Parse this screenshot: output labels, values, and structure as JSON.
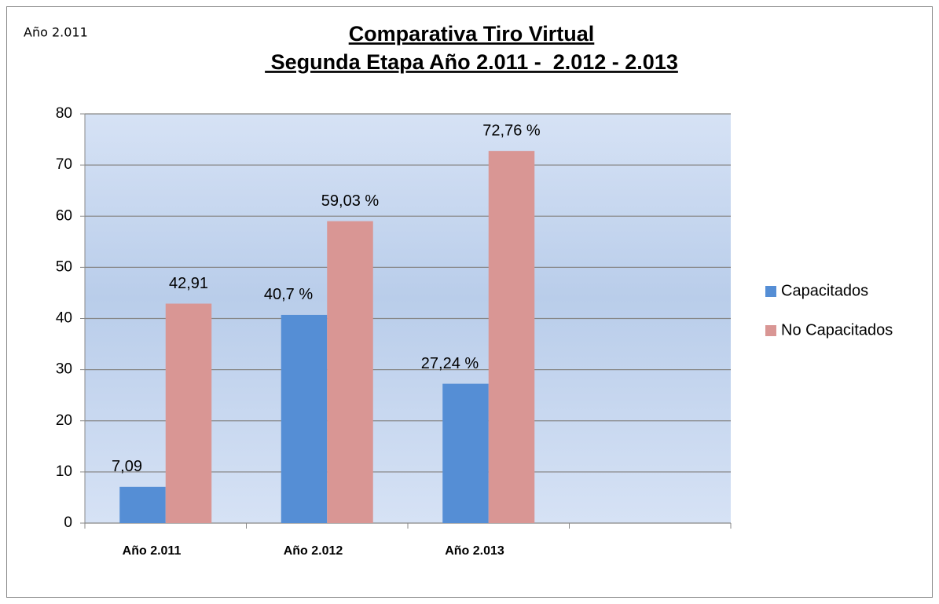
{
  "chart_data": {
    "type": "bar",
    "annotation": "Año 2.011",
    "title": "Comparativa Tiro Virtual",
    "subtitle": " Segunda Etapa Año 2.011 -  2.012 - 2.013",
    "categories": [
      "Año 2.011",
      "Año 2.012",
      "Año 2.013",
      null
    ],
    "series": [
      {
        "name": "Capacitados",
        "color": "#558ed5",
        "values": [
          7.09,
          40.7,
          27.24,
          null
        ],
        "value_labels": [
          "7,09",
          "40,7 %",
          "27,24 %",
          null
        ]
      },
      {
        "name": "No Capacitados",
        "color": "#d99694",
        "values": [
          42.91,
          59.03,
          72.76,
          null
        ],
        "value_labels": [
          "42,91",
          "59,03 %",
          "72,76 %",
          null
        ]
      }
    ],
    "ylim": [
      0,
      80
    ],
    "yticks": [
      0,
      10,
      20,
      30,
      40,
      50,
      60,
      70,
      80
    ],
    "grid": true,
    "legend": "right"
  }
}
